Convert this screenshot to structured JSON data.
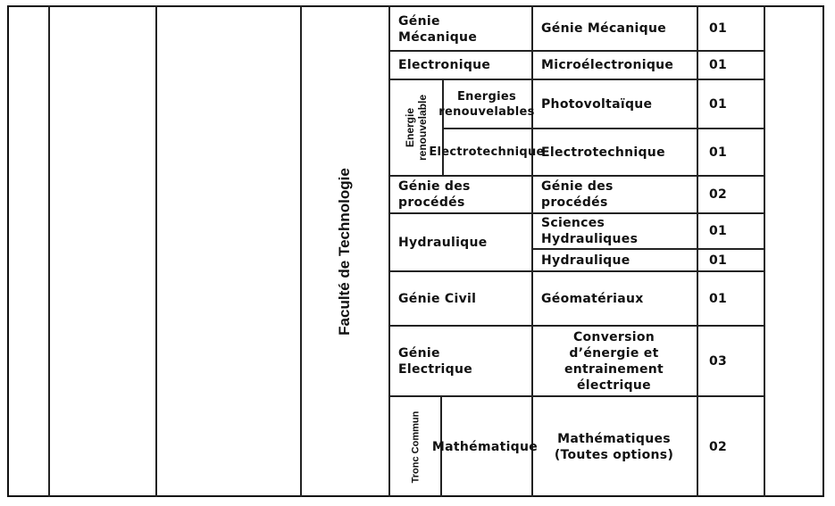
{
  "faculty": "Faculté de Technologie",
  "rows": [
    {
      "domain": "Génie Mécanique",
      "specialty": "Génie Mécanique",
      "count": "01"
    },
    {
      "domain": "Electronique",
      "specialty": "Microélectronique",
      "count": "01"
    },
    {
      "group": "Energie renouvelable",
      "domain": "Energies renouvelables",
      "specialty": "Photovoltaïque",
      "count": "01"
    },
    {
      "group": "Energie renouvelable",
      "domain": "Electrotechnique",
      "specialty": "Electrotechnique",
      "count": "01"
    },
    {
      "domain": "Génie des procédés",
      "specialty": "Génie des procédés",
      "count": "02"
    },
    {
      "domain": "Hydraulique",
      "specialty": "Sciences Hydrauliques",
      "count": "01"
    },
    {
      "domain": "Hydraulique",
      "specialty": "Hydraulique",
      "count": "01"
    },
    {
      "domain": "Génie Civil",
      "specialty": "Géomatériaux",
      "count": "01"
    },
    {
      "domain": "Génie Electrique",
      "specialty": "Conversion d’énergie et entrainement électrique",
      "count": "03"
    },
    {
      "group": "Tronc Commun",
      "domain": "Mathématique",
      "specialty": "Mathématiques (Toutes options)",
      "count": "02"
    }
  ]
}
